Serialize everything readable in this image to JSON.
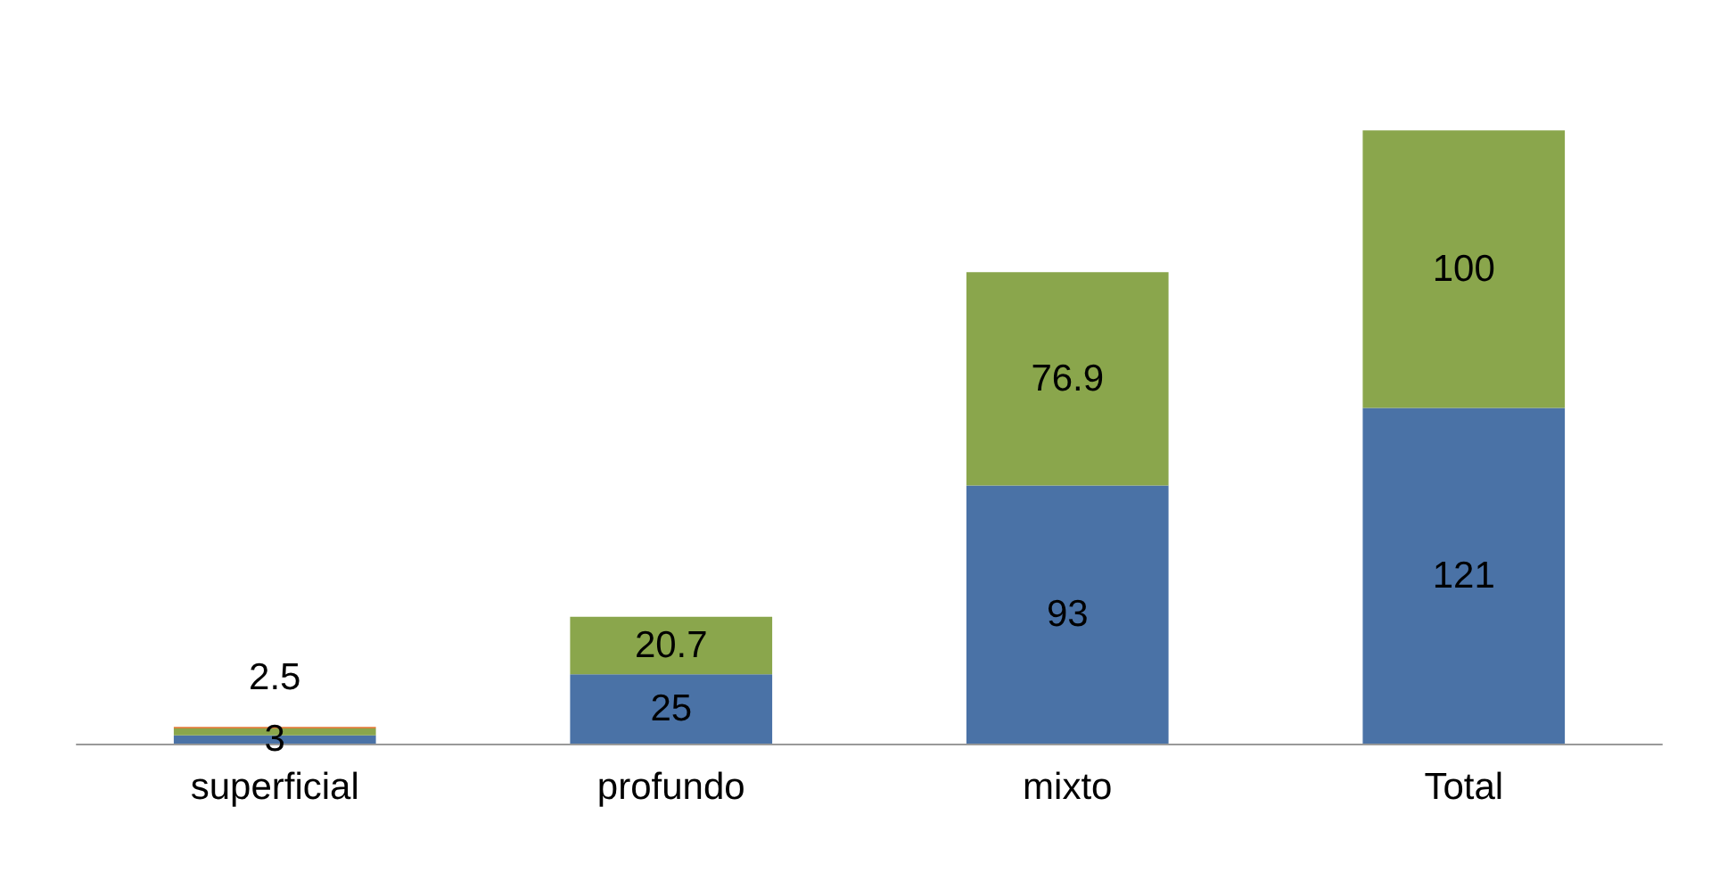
{
  "chart_data": {
    "type": "bar",
    "stacked": true,
    "categories": [
      "superficial",
      "profundo",
      "mixto",
      "Total"
    ],
    "series": [
      {
        "color": "#4a72a6",
        "values": [
          3,
          25,
          93,
          121
        ],
        "value_labels": [
          "3",
          "25",
          "93",
          "121"
        ]
      },
      {
        "color": "#8aa64c",
        "values": [
          2.5,
          20.7,
          76.9,
          100
        ],
        "value_labels": [
          "2.5",
          "20.7",
          "76.9",
          "100"
        ]
      },
      {
        "color": "#e07b39",
        "values": [
          0.5,
          null,
          null,
          null
        ],
        "value_labels": [
          null,
          null,
          null,
          null
        ]
      }
    ]
  }
}
